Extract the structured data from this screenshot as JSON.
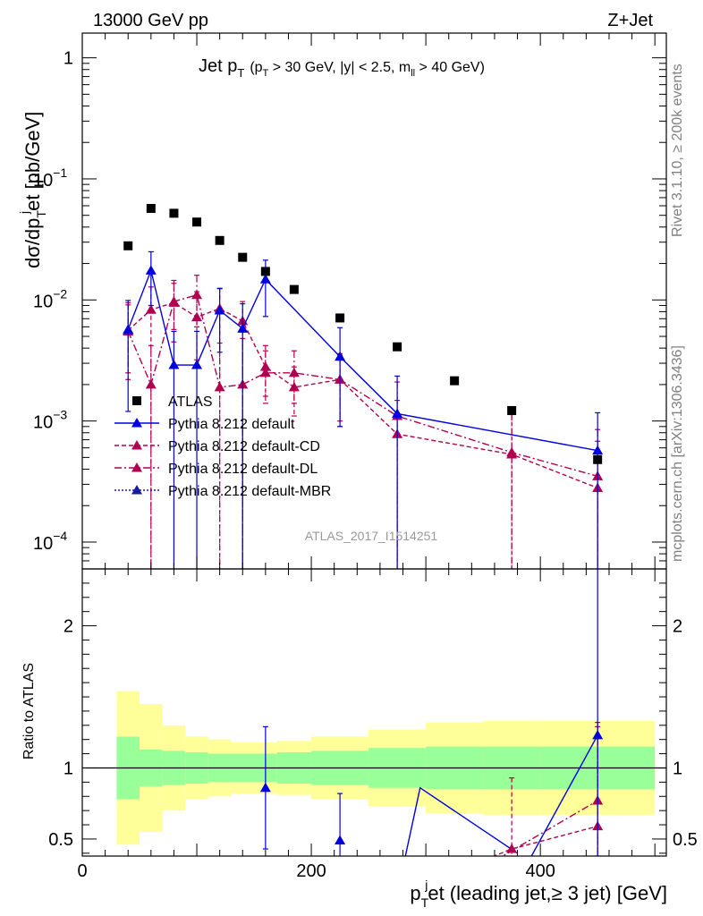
{
  "header": {
    "energy_label": "13000 GeV pp",
    "process_label": "Z+Jet"
  },
  "side_labels": {
    "rivet": "Rivet 3.1.10, ≥ 200k events",
    "mcplots": "mcplots.cern.ch [arXiv:1306.3436]"
  },
  "chart_data": {
    "type": "scatter",
    "title_main": "Jet p",
    "title_sub_T": "T",
    "title_cut_prefix": "(p",
    "title_cut_rest": " > 30 GeV, |y| < 2.5, m",
    "title_cut_ll": "ll",
    "title_cut_end": " > 40 GeV)",
    "analysis_label": "ATLAS_2017_I1514251",
    "ylabel_upper": "dσ/dp",
    "ylabel_upper_sup": "j",
    "ylabel_upper_sub": "T",
    "ylabel_upper_rest": "et [pb/GeV]",
    "ylabel_lower": "Ratio to ATLAS",
    "xlabel_prefix": "p",
    "xlabel_sup": "j",
    "xlabel_sub": "T",
    "xlabel_rest": "et (leading jet,≥ 3 jet) [GeV]",
    "xlim": [
      0,
      510
    ],
    "ylim_upper": [
      6e-05,
      1.6
    ],
    "ylim_lower": [
      0.38,
      2.4
    ],
    "x_ticks": [
      0,
      200,
      400
    ],
    "y_ticks_upper": [
      {
        "value": 1,
        "label": "1"
      },
      {
        "value": 0.1,
        "base": "10",
        "exp": "−1"
      },
      {
        "value": 0.01,
        "base": "10",
        "exp": "−2"
      },
      {
        "value": 0.001,
        "base": "10",
        "exp": "−3"
      },
      {
        "value": 0.0001,
        "base": "10",
        "exp": "−4"
      }
    ],
    "y_ticks_lower": [
      {
        "value": 2,
        "label": "2"
      },
      {
        "value": 1,
        "label": "1"
      },
      {
        "value": 0.5,
        "label": "0.5"
      }
    ],
    "bins": [
      [
        30,
        50
      ],
      [
        50,
        70
      ],
      [
        70,
        90
      ],
      [
        90,
        110
      ],
      [
        110,
        130
      ],
      [
        130,
        150
      ],
      [
        150,
        170
      ],
      [
        170,
        200
      ],
      [
        200,
        250
      ],
      [
        250,
        300
      ],
      [
        300,
        350
      ],
      [
        350,
        400
      ],
      [
        400,
        500
      ]
    ],
    "data": {
      "name": "ATLAS",
      "x": [
        40,
        60,
        80,
        100,
        120,
        140,
        160,
        185,
        225,
        275,
        325,
        375,
        450
      ],
      "y": [
        0.028,
        0.057,
        0.052,
        0.044,
        0.031,
        0.0225,
        0.0172,
        0.0122,
        0.0071,
        0.0041,
        0.00215,
        0.00122,
        0.00048
      ],
      "band_inner": [
        0.22,
        0.13,
        0.12,
        0.11,
        0.1,
        0.1,
        0.1,
        0.11,
        0.12,
        0.14,
        0.15,
        0.15,
        0.15
      ],
      "band_outer": [
        0.54,
        0.45,
        0.3,
        0.22,
        0.2,
        0.18,
        0.18,
        0.19,
        0.22,
        0.27,
        0.32,
        0.33,
        0.33
      ]
    },
    "series": [
      {
        "name": "Pythia 8.212 default",
        "color": "#0000dd",
        "dash": "",
        "x": [
          40,
          60,
          80,
          100,
          120,
          140,
          160,
          225,
          275,
          450
        ],
        "y": [
          0.0057,
          0.0175,
          0.0029,
          0.0029,
          0.0082,
          0.0058,
          0.0148,
          0.0034,
          0.00115,
          0.00057
        ],
        "err_lo": [
          0.0045,
          0.0085,
          0.0029,
          0.0029,
          0.0045,
          0.0058,
          0.0075,
          0.0025,
          0.00115,
          0.00057
        ],
        "err_hi": [
          0.0042,
          0.0075,
          0.0026,
          0.0026,
          0.0042,
          0.0035,
          0.0065,
          0.0025,
          0.0012,
          0.0006
        ],
        "ratio_x": [
          160,
          225,
          450
        ],
        "ratio_y": [
          0.86,
          0.49,
          1.23
        ],
        "ratio_lo": [
          0.43,
          0.33,
          0.85
        ],
        "ratio_hi": [
          0.43,
          0.33,
          1.2
        ]
      },
      {
        "name": "Pythia 8.212 default-CD",
        "color": "#b00050",
        "dash": "5,3",
        "x": [
          40,
          60,
          80,
          100,
          120,
          140,
          160,
          185,
          225,
          275,
          375,
          450
        ],
        "y": [
          0.0056,
          0.0083,
          0.0095,
          0.0072,
          0.0085,
          0.0067,
          0.0028,
          0.0019,
          0.0022,
          0.00078,
          0.00053,
          0.00028
        ],
        "err_lo": [
          0.0034,
          0.0083,
          0.005,
          0.004,
          0.0085,
          0.0067,
          0.0012,
          0.0008,
          0.0013,
          0.00078,
          0.00053,
          0.00028
        ],
        "err_hi": [
          0.0035,
          0.0045,
          0.005,
          0.0045,
          0.004,
          0.003,
          0.0014,
          0.0009,
          0.0014,
          0.0007,
          0.0006,
          0.0004
        ],
        "ratio_x": [
          375,
          450
        ],
        "ratio_y": [
          0.43,
          0.59
        ],
        "ratio_lo": [
          0.1,
          0.59
        ],
        "ratio_hi": [
          0.5,
          0.7
        ]
      },
      {
        "name": "Pythia 8.212 default-DL",
        "color": "#b00050",
        "dash": "8,3,2,3",
        "x": [
          40,
          60,
          80,
          100,
          120,
          140,
          160,
          185,
          225,
          275,
          375,
          450
        ],
        "y": [
          0.0055,
          0.002,
          0.0097,
          0.011,
          0.0019,
          0.002,
          0.0025,
          0.0025,
          0.0022,
          0.0011,
          0.00055,
          0.00035
        ],
        "err_lo": [
          0.003,
          0.002,
          0.004,
          0.005,
          0.0019,
          0.002,
          0.0011,
          0.0011,
          0.0012,
          0.0011,
          0.00055,
          0.00035
        ],
        "err_hi": [
          0.004,
          0.0022,
          0.004,
          0.005,
          0.0025,
          0.0028,
          0.0013,
          0.0013,
          0.0013,
          0.001,
          0.0006,
          0.0005
        ],
        "ratio_x": [
          450
        ],
        "ratio_y": [
          0.77
        ],
        "ratio_lo": [
          0.45
        ],
        "ratio_hi": [
          0.55
        ]
      },
      {
        "name": "Pythia 8.212 default-MBR",
        "color": "#1a1aa0",
        "dash": "2,2",
        "x": [],
        "y": [],
        "err_lo": [],
        "err_hi": [],
        "ratio_x": [],
        "ratio_y": [],
        "ratio_lo": [],
        "ratio_hi": []
      }
    ],
    "ratio_lines": {
      "default_segments": [
        [
          [
            280,
            0.3
          ],
          [
            295,
            0.86
          ],
          [
            380,
            0.4
          ]
        ],
        [
          [
            380,
            0.2
          ],
          [
            450,
            1.23
          ]
        ]
      ],
      "cd_segments": [
        [
          [
            335,
            0.3
          ],
          [
            375,
            0.43
          ],
          [
            450,
            0.59
          ]
        ]
      ],
      "dl_segments": [
        [
          [
            350,
            0.3
          ],
          [
            450,
            0.77
          ]
        ]
      ]
    },
    "band_colors": {
      "inner": "#99ff99",
      "outer": "#ffff99"
    }
  }
}
